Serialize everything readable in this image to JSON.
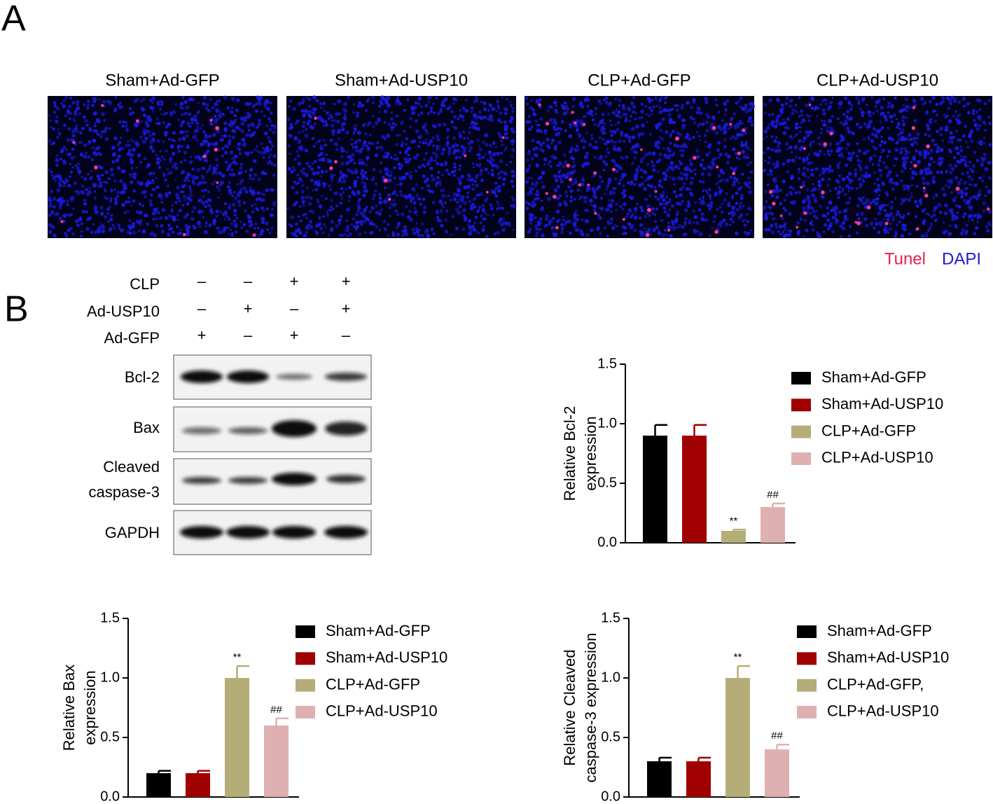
{
  "panel_labels": [
    "A",
    "B"
  ],
  "panel_a": {
    "titles": [
      "Sham+Ad-GFP",
      "Sham+Ad-USP10",
      "CLP+Ad-GFP",
      "CLP+Ad-USP10"
    ],
    "stains": [
      {
        "label": "Tunel",
        "color": "#e8204a"
      },
      {
        "label": "DAPI",
        "color": "#1a1adc"
      }
    ]
  },
  "blot": {
    "conditions": [
      {
        "label": "CLP",
        "signs": [
          "–",
          "–",
          "+",
          "+"
        ]
      },
      {
        "label": "Ad-USP10",
        "signs": [
          "–",
          "+",
          "–",
          "+"
        ]
      },
      {
        "label": "Ad-GFP",
        "signs": [
          "+",
          "–",
          "+",
          "–"
        ]
      }
    ],
    "rows": [
      [
        "Bcl-2"
      ],
      [
        "Bax"
      ],
      [
        "Cleaved",
        "caspase-3"
      ],
      [
        "GAPDH"
      ]
    ]
  },
  "chart_data": [
    {
      "type": "bar",
      "ylabel": [
        "Relative Bcl-2",
        "expression"
      ],
      "categories": [
        "Sham+Ad-GFP",
        "Sham+Ad-USP10",
        "CLP+Ad-GFP",
        "CLP+Ad-USP10"
      ],
      "colors": [
        "#000000",
        "#a00000",
        "#b5ad78",
        "#dfb0b0"
      ],
      "values": [
        0.9,
        0.9,
        0.1,
        0.3
      ],
      "errors": [
        0.09,
        0.09,
        0.01,
        0.03
      ],
      "annotations": [
        null,
        null,
        "**",
        "##"
      ],
      "ylim": [
        0,
        1.5
      ],
      "yticks": [
        {
          "value": 0,
          "label": "0.0"
        },
        {
          "value": 0.5,
          "label": "0.5"
        },
        {
          "value": 1,
          "label": "1.0"
        },
        {
          "value": 1.5,
          "label": "1.5"
        }
      ]
    },
    {
      "type": "bar",
      "ylabel": [
        "Relative Bax",
        "expression"
      ],
      "categories": [
        "Sham+Ad-GFP",
        "Sham+Ad-USP10",
        "CLP+Ad-GFP",
        "CLP+Ad-USP10"
      ],
      "colors": [
        "#000000",
        "#a00000",
        "#b5ad78",
        "#dfb0b0"
      ],
      "values": [
        0.2,
        0.2,
        1.0,
        0.6
      ],
      "errors": [
        0.02,
        0.02,
        0.1,
        0.06
      ],
      "annotations": [
        null,
        null,
        "**",
        "##"
      ],
      "ylim": [
        0,
        1.5
      ],
      "yticks": [
        {
          "value": 0,
          "label": "0.0"
        },
        {
          "value": 0.5,
          "label": "0.5"
        },
        {
          "value": 1,
          "label": "1.0"
        },
        {
          "value": 1.5,
          "label": "1.5"
        }
      ]
    },
    {
      "type": "bar",
      "ylabel": [
        "Relative Cleaved",
        "caspase-3 expression"
      ],
      "categories": [
        "Sham+Ad-GFP",
        "Sham+Ad-USP10",
        "CLP+Ad-GFP,",
        "CLP+Ad-USP10"
      ],
      "colors": [
        "#000000",
        "#a00000",
        "#b5ad78",
        "#dfb0b0"
      ],
      "values": [
        0.3,
        0.3,
        1.0,
        0.4
      ],
      "errors": [
        0.03,
        0.03,
        0.1,
        0.04
      ],
      "annotations": [
        null,
        null,
        "**",
        "##"
      ],
      "ylim": [
        0,
        1.5
      ],
      "yticks": [
        {
          "value": 0,
          "label": "0.0"
        },
        {
          "value": 0.5,
          "label": "0.5"
        },
        {
          "value": 1,
          "label": "1.0"
        },
        {
          "value": 1.5,
          "label": "1.5"
        }
      ]
    }
  ]
}
